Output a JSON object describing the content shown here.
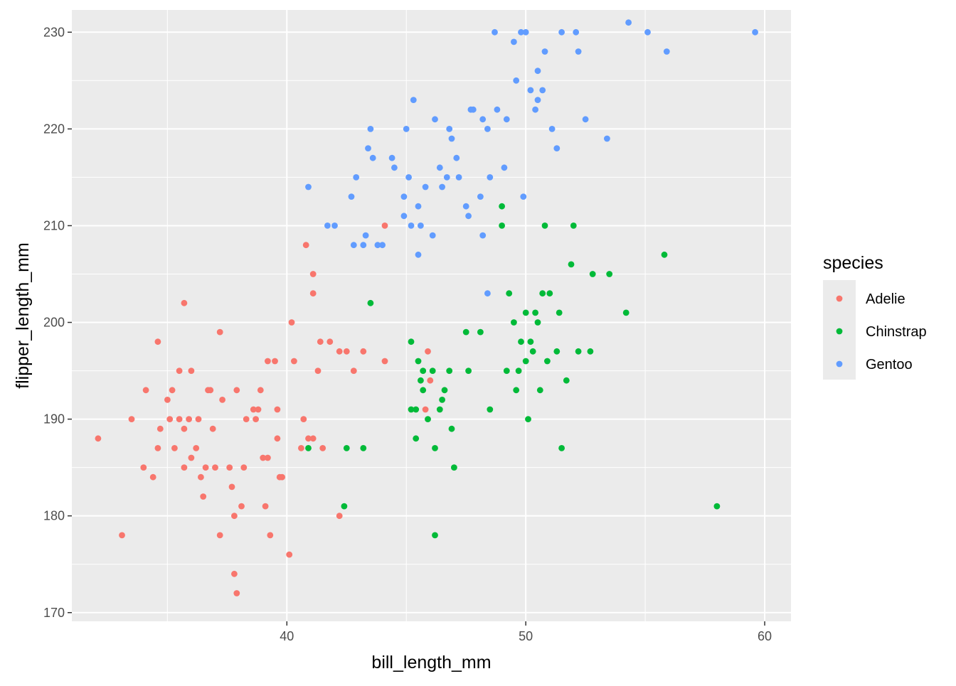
{
  "chart_data": {
    "type": "scatter",
    "title": "",
    "xlabel": "bill_length_mm",
    "ylabel": "flipper_length_mm",
    "xlim": [
      31.0,
      61.1
    ],
    "ylim": [
      169.1,
      232.3
    ],
    "x_ticks": [
      40,
      50,
      60
    ],
    "x_minor_ticks": [
      35,
      45,
      55
    ],
    "y_ticks": [
      170,
      180,
      190,
      200,
      210,
      220,
      230
    ],
    "y_minor_ticks": [
      175,
      185,
      195,
      205,
      215,
      225
    ],
    "grid": true,
    "background": "#ebebeb",
    "legend": {
      "title": "species",
      "placement": "right"
    },
    "series": [
      {
        "name": "Adelie",
        "color": "#F8766D",
        "points": [
          [
            32.1,
            188
          ],
          [
            33.1,
            178
          ],
          [
            33.5,
            190
          ],
          [
            34.0,
            185
          ],
          [
            34.1,
            193
          ],
          [
            34.4,
            184
          ],
          [
            34.6,
            187
          ],
          [
            34.6,
            198
          ],
          [
            34.7,
            189
          ],
          [
            35.0,
            192
          ],
          [
            35.1,
            190
          ],
          [
            35.2,
            193
          ],
          [
            35.3,
            187
          ],
          [
            35.5,
            190
          ],
          [
            35.5,
            195
          ],
          [
            35.7,
            202
          ],
          [
            35.7,
            189
          ],
          [
            35.7,
            185
          ],
          [
            35.9,
            190
          ],
          [
            36.0,
            186
          ],
          [
            36.0,
            195
          ],
          [
            36.2,
            187
          ],
          [
            36.3,
            190
          ],
          [
            36.4,
            184
          ],
          [
            36.5,
            182
          ],
          [
            36.6,
            185
          ],
          [
            36.7,
            193
          ],
          [
            36.8,
            193
          ],
          [
            36.9,
            189
          ],
          [
            37.0,
            185
          ],
          [
            37.2,
            178
          ],
          [
            37.2,
            199
          ],
          [
            37.3,
            192
          ],
          [
            37.6,
            185
          ],
          [
            37.7,
            183
          ],
          [
            37.8,
            174
          ],
          [
            37.8,
            180
          ],
          [
            37.9,
            172
          ],
          [
            38.1,
            181
          ],
          [
            38.2,
            185
          ],
          [
            38.3,
            190
          ],
          [
            38.6,
            191
          ],
          [
            38.7,
            190
          ],
          [
            38.8,
            191
          ],
          [
            39.0,
            186
          ],
          [
            39.1,
            181
          ],
          [
            39.2,
            186
          ],
          [
            39.3,
            178
          ],
          [
            39.5,
            196
          ],
          [
            39.6,
            188
          ],
          [
            39.7,
            184
          ],
          [
            39.8,
            184
          ],
          [
            40.1,
            176
          ],
          [
            40.2,
            200
          ],
          [
            40.3,
            196
          ],
          [
            40.6,
            187
          ],
          [
            40.7,
            190
          ],
          [
            40.8,
            208
          ],
          [
            41.1,
            203
          ],
          [
            41.1,
            188
          ],
          [
            41.1,
            205
          ],
          [
            41.3,
            195
          ],
          [
            41.5,
            187
          ],
          [
            41.8,
            198
          ],
          [
            42.2,
            180
          ],
          [
            42.2,
            197
          ],
          [
            42.5,
            197
          ],
          [
            42.8,
            195
          ],
          [
            43.2,
            197
          ],
          [
            44.1,
            196
          ],
          [
            44.1,
            210
          ],
          [
            45.8,
            191
          ],
          [
            45.9,
            197
          ],
          [
            46.0,
            194
          ],
          [
            39.6,
            191
          ],
          [
            38.9,
            193
          ],
          [
            37.9,
            193
          ],
          [
            39.2,
            196
          ],
          [
            40.9,
            188
          ],
          [
            41.4,
            198
          ]
        ]
      },
      {
        "name": "Chinstrap",
        "color": "#00BA38",
        "points": [
          [
            40.9,
            187
          ],
          [
            42.4,
            181
          ],
          [
            42.5,
            187
          ],
          [
            43.2,
            187
          ],
          [
            43.5,
            202
          ],
          [
            45.2,
            198
          ],
          [
            45.2,
            191
          ],
          [
            45.4,
            188
          ],
          [
            45.5,
            196
          ],
          [
            45.6,
            194
          ],
          [
            45.7,
            195
          ],
          [
            45.9,
            190
          ],
          [
            46.1,
            195
          ],
          [
            46.2,
            187
          ],
          [
            46.4,
            191
          ],
          [
            46.5,
            192
          ],
          [
            46.6,
            193
          ],
          [
            46.8,
            195
          ],
          [
            46.9,
            189
          ],
          [
            47.0,
            185
          ],
          [
            47.5,
            199
          ],
          [
            47.6,
            195
          ],
          [
            48.1,
            199
          ],
          [
            48.5,
            191
          ],
          [
            49.0,
            210
          ],
          [
            49.0,
            212
          ],
          [
            49.2,
            195
          ],
          [
            49.3,
            203
          ],
          [
            49.5,
            200
          ],
          [
            49.6,
            193
          ],
          [
            49.7,
            195
          ],
          [
            49.8,
            198
          ],
          [
            50.0,
            196
          ],
          [
            50.1,
            190
          ],
          [
            50.2,
            198
          ],
          [
            50.3,
            197
          ],
          [
            50.5,
            200
          ],
          [
            50.6,
            193
          ],
          [
            50.7,
            203
          ],
          [
            50.8,
            210
          ],
          [
            50.9,
            196
          ],
          [
            51.0,
            203
          ],
          [
            51.3,
            197
          ],
          [
            51.4,
            201
          ],
          [
            51.5,
            187
          ],
          [
            51.7,
            194
          ],
          [
            51.9,
            206
          ],
          [
            52.0,
            210
          ],
          [
            52.2,
            197
          ],
          [
            52.7,
            197
          ],
          [
            52.8,
            205
          ],
          [
            53.5,
            205
          ],
          [
            54.2,
            201
          ],
          [
            55.8,
            207
          ],
          [
            58.0,
            181
          ],
          [
            46.2,
            178
          ],
          [
            45.4,
            191
          ],
          [
            45.7,
            193
          ],
          [
            50.0,
            201
          ],
          [
            50.4,
            201
          ]
        ]
      },
      {
        "name": "Gentoo",
        "color": "#619CFF",
        "points": [
          [
            40.9,
            214
          ],
          [
            41.7,
            210
          ],
          [
            42.0,
            210
          ],
          [
            42.7,
            213
          ],
          [
            42.8,
            208
          ],
          [
            42.9,
            215
          ],
          [
            43.2,
            208
          ],
          [
            43.3,
            209
          ],
          [
            43.4,
            218
          ],
          [
            43.5,
            220
          ],
          [
            43.6,
            217
          ],
          [
            43.8,
            208
          ],
          [
            44.0,
            208
          ],
          [
            44.4,
            217
          ],
          [
            44.5,
            216
          ],
          [
            44.9,
            213
          ],
          [
            45.0,
            220
          ],
          [
            45.1,
            215
          ],
          [
            45.2,
            210
          ],
          [
            45.3,
            223
          ],
          [
            45.5,
            212
          ],
          [
            45.6,
            210
          ],
          [
            45.8,
            214
          ],
          [
            46.1,
            209
          ],
          [
            46.2,
            221
          ],
          [
            46.4,
            216
          ],
          [
            46.5,
            214
          ],
          [
            46.7,
            215
          ],
          [
            46.8,
            220
          ],
          [
            47.2,
            215
          ],
          [
            47.5,
            212
          ],
          [
            47.7,
            222
          ],
          [
            48.1,
            213
          ],
          [
            48.2,
            221
          ],
          [
            48.4,
            220
          ],
          [
            48.5,
            215
          ],
          [
            48.7,
            230
          ],
          [
            48.8,
            222
          ],
          [
            49.1,
            216
          ],
          [
            49.2,
            221
          ],
          [
            49.5,
            229
          ],
          [
            49.6,
            225
          ],
          [
            49.8,
            230
          ],
          [
            50.0,
            230
          ],
          [
            50.2,
            224
          ],
          [
            50.4,
            222
          ],
          [
            50.5,
            223
          ],
          [
            50.8,
            228
          ],
          [
            51.1,
            220
          ],
          [
            51.3,
            218
          ],
          [
            51.5,
            230
          ],
          [
            52.1,
            230
          ],
          [
            52.2,
            228
          ],
          [
            52.5,
            221
          ],
          [
            53.4,
            219
          ],
          [
            54.3,
            231
          ],
          [
            55.1,
            230
          ],
          [
            55.9,
            228
          ],
          [
            59.6,
            230
          ],
          [
            45.5,
            207
          ],
          [
            48.4,
            203
          ],
          [
            48.2,
            209
          ],
          [
            47.6,
            211
          ],
          [
            49.9,
            213
          ],
          [
            46.9,
            219
          ],
          [
            50.5,
            226
          ],
          [
            47.8,
            222
          ],
          [
            44.9,
            211
          ],
          [
            47.1,
            217
          ],
          [
            50.7,
            224
          ]
        ]
      }
    ]
  }
}
